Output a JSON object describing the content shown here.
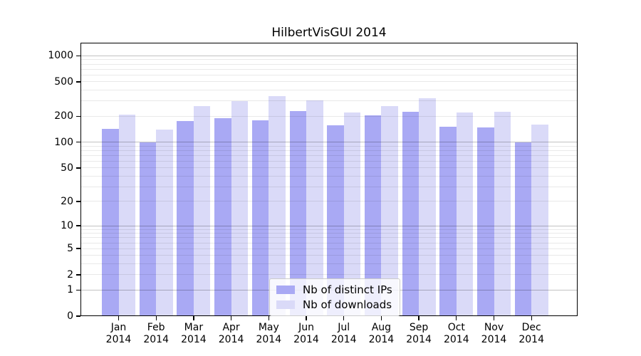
{
  "chart_data": {
    "type": "bar",
    "title": "HilbertVisGUI 2014",
    "categories": [
      "Jan",
      "Feb",
      "Mar",
      "Apr",
      "May",
      "Jun",
      "Jul",
      "Aug",
      "Sep",
      "Oct",
      "Nov",
      "Dec"
    ],
    "category_year": "2014",
    "series": [
      {
        "name": "Nb of distinct IPs",
        "color": "#a9a9f4",
        "values": [
          143,
          100,
          177,
          190,
          180,
          230,
          158,
          204,
          227,
          150,
          148,
          100
        ]
      },
      {
        "name": "Nb of downloads",
        "color": "#dadaf8",
        "values": [
          209,
          140,
          264,
          301,
          345,
          305,
          222,
          262,
          326,
          223,
          224,
          159
        ]
      }
    ],
    "xlabel": "",
    "ylabel": "",
    "y_scale": "log1p",
    "ylim": [
      0,
      1420
    ],
    "y_ticks": [
      0,
      1,
      2,
      5,
      10,
      20,
      50,
      100,
      200,
      500,
      1000
    ],
    "y_major_gridlines": [
      1,
      10,
      100,
      1000
    ],
    "y_minor_gridlines": [
      2,
      3,
      4,
      5,
      6,
      7,
      8,
      9,
      20,
      30,
      40,
      50,
      60,
      70,
      80,
      90,
      200,
      300,
      400,
      500,
      600,
      700,
      800,
      900
    ],
    "grid": true,
    "legend_position": "lower center",
    "background_color": "#ffffff",
    "frame_color": "#000000"
  }
}
